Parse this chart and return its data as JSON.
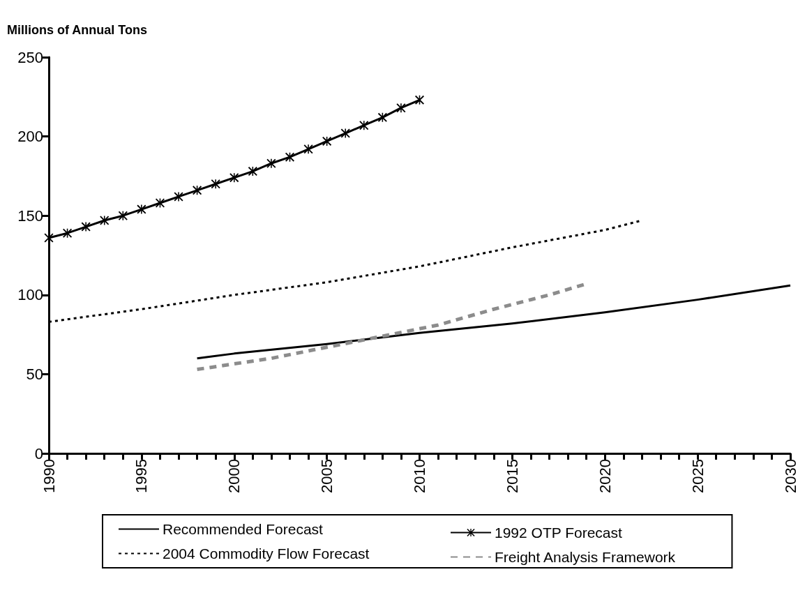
{
  "chart_data": {
    "type": "line",
    "ylabel": "Millions of Annual Tons",
    "xlim": [
      1990,
      2030
    ],
    "xticks": [
      1990,
      {
        "value": 1991,
        "label": null
      },
      {
        "value": 1992,
        "label": null
      },
      {
        "value": 1993,
        "label": null
      },
      {
        "value": 1994,
        "label": null
      },
      1995,
      {
        "value": 1996,
        "label": null
      },
      {
        "value": 1997,
        "label": null
      },
      {
        "value": 1998,
        "label": null
      },
      {
        "value": 1999,
        "label": null
      },
      2000,
      {
        "value": 2001,
        "label": null
      },
      {
        "value": 2002,
        "label": null
      },
      {
        "value": 2003,
        "label": null
      },
      {
        "value": 2004,
        "label": null
      },
      2005,
      {
        "value": 2006,
        "label": null
      },
      {
        "value": 2007,
        "label": null
      },
      {
        "value": 2008,
        "label": null
      },
      {
        "value": 2009,
        "label": null
      },
      2010,
      {
        "value": 2011,
        "label": null
      },
      {
        "value": 2012,
        "label": null
      },
      {
        "value": 2013,
        "label": null
      },
      {
        "value": 2014,
        "label": null
      },
      2015,
      {
        "value": 2016,
        "label": null
      },
      {
        "value": 2017,
        "label": null
      },
      {
        "value": 2018,
        "label": null
      },
      {
        "value": 2019,
        "label": null
      },
      2020,
      {
        "value": 2021,
        "label": null
      },
      {
        "value": 2022,
        "label": null
      },
      {
        "value": 2023,
        "label": null
      },
      {
        "value": 2024,
        "label": null
      },
      2025,
      {
        "value": 2026,
        "label": null
      },
      {
        "value": 2027,
        "label": null
      },
      {
        "value": 2028,
        "label": null
      },
      {
        "value": 2029,
        "label": null
      },
      2030
    ],
    "ylim": [
      0,
      250
    ],
    "yticks": [
      0,
      50,
      100,
      150,
      200,
      250
    ],
    "grid": false,
    "legend": "bottom",
    "series": [
      {
        "name": "Recommended Forecast",
        "color": "#000000",
        "line_style": "solid",
        "marker": "none",
        "x": [
          1998,
          2000,
          2005,
          2010,
          2015,
          2020,
          2025,
          2030
        ],
        "values": [
          60,
          63,
          69,
          76,
          82,
          89,
          97,
          106
        ]
      },
      {
        "name": "1992 OTP Forecast",
        "color": "#000000",
        "line_style": "solid",
        "marker": "cross",
        "x": [
          1990,
          1991,
          1992,
          1993,
          1994,
          1995,
          1996,
          1997,
          1998,
          1999,
          2000,
          2001,
          2002,
          2003,
          2004,
          2005,
          2006,
          2007,
          2008,
          2009,
          2010
        ],
        "values": [
          136,
          139,
          143,
          147,
          150,
          154,
          158,
          162,
          166,
          170,
          174,
          178,
          183,
          187,
          192,
          197,
          202,
          207,
          212,
          218,
          223
        ]
      },
      {
        "name": "2004 Commodity Flow Forecast",
        "color": "#000000",
        "line_style": "dotted",
        "marker": "none",
        "x": [
          1990,
          1995,
          2000,
          2005,
          2010,
          2015,
          2020,
          2022
        ],
        "values": [
          83,
          91,
          100,
          108,
          118,
          130,
          141,
          147
        ]
      },
      {
        "name": "Freight Analysis Framework",
        "color": "#8c8c8c",
        "line_style": "dashed",
        "marker": "none",
        "x": [
          1998,
          2002,
          2005,
          2008,
          2011,
          2014,
          2017,
          2019
        ],
        "values": [
          53,
          60,
          67,
          74,
          81,
          91,
          100,
          107
        ]
      }
    ]
  }
}
